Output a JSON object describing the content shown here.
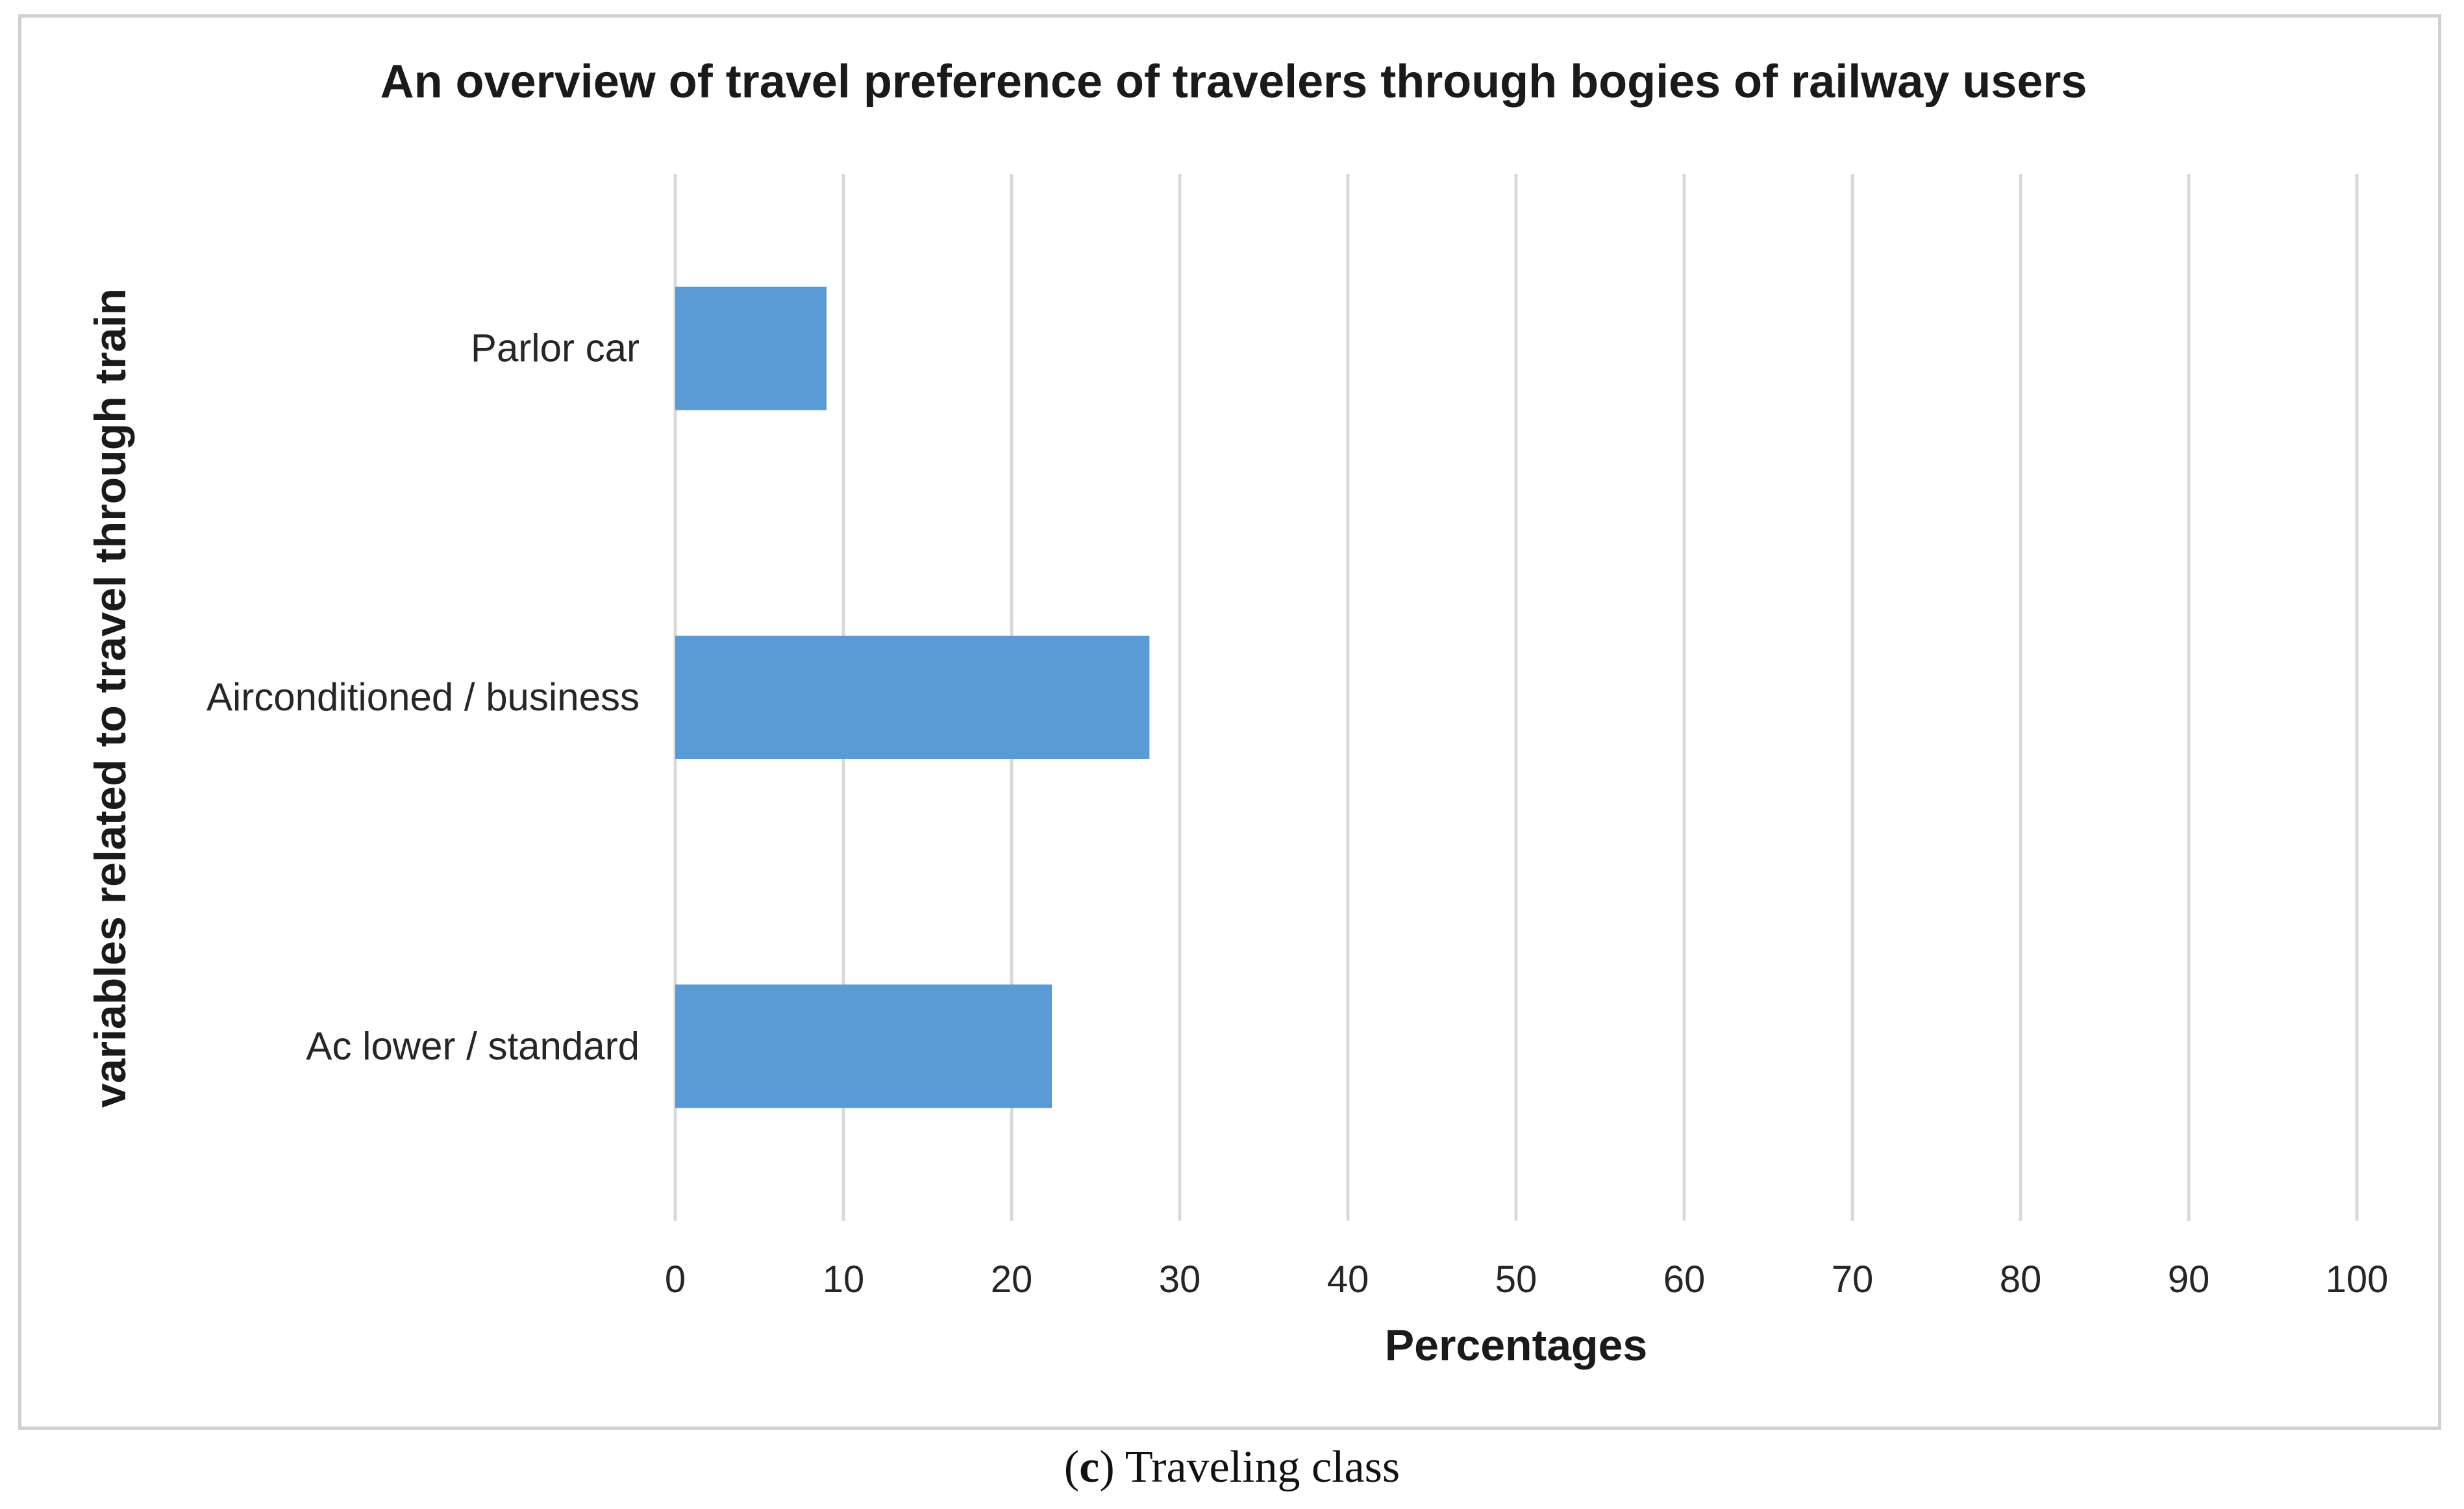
{
  "chart_data": {
    "type": "bar",
    "orientation": "horizontal",
    "title": "An overview of travel preference of travelers through bogies of railway users",
    "xlabel": "Percentages",
    "ylabel": "variables related to travel through train",
    "categories": [
      "Parlor car",
      "Airconditioned / business",
      "Ac lower / standard"
    ],
    "values": [
      9,
      28.2,
      22.4
    ],
    "xlim": [
      0,
      100
    ],
    "xticks": [
      "0",
      "10",
      "20",
      "30",
      "40",
      "50",
      "60",
      "70",
      "80",
      "90",
      "100"
    ],
    "grid": "vertical",
    "legend": "none",
    "bar_color": "#5b9bd5"
  },
  "caption": {
    "letter": "c",
    "text": "Traveling class"
  }
}
